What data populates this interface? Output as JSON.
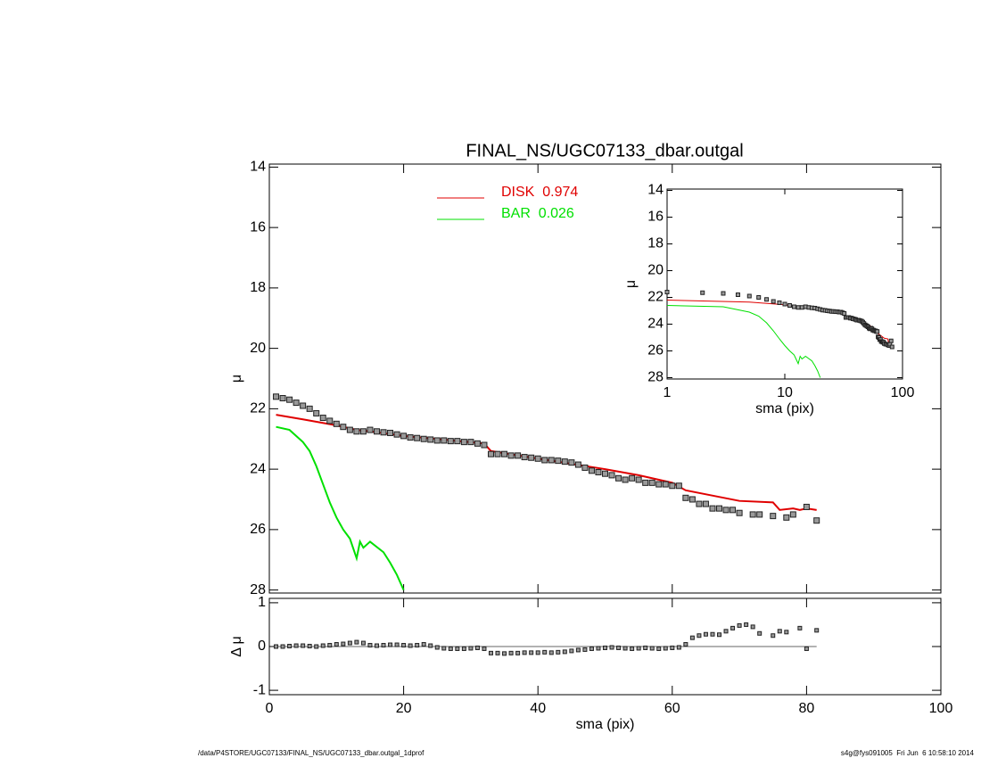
{
  "chart_data": [
    {
      "type": "line",
      "title": "FINAL_NS/UGC07133_dbar.outgal",
      "ylabel": "μ",
      "x": [
        1,
        2,
        3,
        4,
        5,
        6,
        7,
        8,
        9,
        10,
        11,
        12,
        13,
        14,
        15,
        16,
        17,
        18,
        19,
        20,
        21,
        22,
        23,
        24,
        25,
        26,
        27,
        28,
        29,
        30,
        31,
        32,
        33,
        34,
        35,
        36,
        37,
        38,
        39,
        40,
        41,
        42,
        43,
        44,
        45,
        46,
        47,
        48,
        49,
        50,
        51,
        52,
        53,
        54,
        55,
        56,
        57,
        58,
        59,
        60,
        61,
        62,
        63,
        64,
        65,
        66,
        67,
        68,
        69,
        70,
        72,
        73,
        75,
        77,
        78,
        80,
        81.5
      ],
      "values": [
        21.6,
        21.65,
        21.7,
        21.8,
        21.9,
        22.0,
        22.15,
        22.3,
        22.4,
        22.5,
        22.6,
        22.7,
        22.75,
        22.75,
        22.7,
        22.75,
        22.78,
        22.8,
        22.85,
        22.9,
        22.95,
        22.97,
        23.0,
        23.02,
        23.05,
        23.05,
        23.07,
        23.07,
        23.1,
        23.1,
        23.15,
        23.2,
        23.5,
        23.5,
        23.5,
        23.55,
        23.55,
        23.6,
        23.62,
        23.65,
        23.7,
        23.7,
        23.72,
        23.75,
        23.78,
        23.85,
        23.95,
        24.05,
        24.1,
        24.15,
        24.2,
        24.3,
        24.35,
        24.3,
        24.35,
        24.45,
        24.45,
        24.5,
        24.5,
        24.55,
        24.55,
        24.95,
        25.0,
        25.15,
        25.15,
        25.3,
        25.3,
        25.35,
        25.35,
        25.45,
        25.5,
        25.5,
        25.55,
        25.6,
        25.5,
        25.25,
        25.7
      ],
      "marker_color": "#9a9a9a",
      "series": [
        {
          "name": "DISK  0.974",
          "color": "#e00000",
          "x": [
            1,
            5,
            10,
            13,
            15,
            20,
            25,
            32,
            33,
            40,
            50,
            55,
            60,
            62,
            70,
            75,
            76,
            78,
            79,
            80,
            81.5
          ],
          "values": [
            22.2,
            22.35,
            22.55,
            22.7,
            22.75,
            22.9,
            23.0,
            23.15,
            23.4,
            23.65,
            24.0,
            24.2,
            24.45,
            24.7,
            25.05,
            25.1,
            25.35,
            25.3,
            25.35,
            25.3,
            25.35
          ]
        },
        {
          "name": "BAR  0.026",
          "color": "#00e000",
          "x": [
            1,
            3,
            5,
            6,
            7,
            8,
            9,
            10,
            11,
            12,
            13,
            13.5,
            14,
            15,
            17,
            18,
            19,
            20
          ],
          "values": [
            22.6,
            22.7,
            23.1,
            23.4,
            23.9,
            24.5,
            25.1,
            25.6,
            26.0,
            26.3,
            26.95,
            26.4,
            26.6,
            26.4,
            26.75,
            27.1,
            27.5,
            28.0
          ]
        }
      ],
      "xlim": [
        0,
        100
      ],
      "ylim": [
        13.9,
        28.1
      ],
      "y_inverted": true,
      "xticks": [
        0,
        20,
        40,
        60,
        80,
        100
      ],
      "yticks": [
        14,
        16,
        18,
        20,
        22,
        24,
        26,
        28
      ]
    },
    {
      "type": "inset",
      "xlabel": "sma (pix)",
      "ylabel": "μ",
      "xscale": "log",
      "xlim": [
        1,
        100
      ],
      "ylim": [
        13.9,
        28.1
      ],
      "y_inverted": true,
      "xticks": [
        1,
        10,
        100
      ],
      "yticks": [
        14,
        16,
        18,
        20,
        22,
        24,
        26,
        28
      ]
    },
    {
      "type": "scatter",
      "xlabel": "sma (pix)",
      "ylabel": "Δ μ",
      "x": [
        1,
        2,
        3,
        4,
        5,
        6,
        7,
        8,
        9,
        10,
        11,
        12,
        13,
        14,
        15,
        16,
        17,
        18,
        19,
        20,
        21,
        22,
        23,
        24,
        25,
        26,
        27,
        28,
        29,
        30,
        31,
        32,
        33,
        34,
        35,
        36,
        37,
        38,
        39,
        40,
        41,
        42,
        43,
        44,
        45,
        46,
        47,
        48,
        49,
        50,
        51,
        52,
        53,
        54,
        55,
        56,
        57,
        58,
        59,
        60,
        61,
        62,
        63,
        64,
        65,
        66,
        67,
        68,
        69,
        70,
        71,
        72,
        73,
        75,
        76,
        77,
        79,
        80,
        81.5
      ],
      "values": [
        0,
        0,
        0.01,
        0.02,
        0.02,
        0.01,
        0,
        0.02,
        0.03,
        0.05,
        0.06,
        0.08,
        0.1,
        0.08,
        0.03,
        0.02,
        0.03,
        0.04,
        0.04,
        0.03,
        0.02,
        0.03,
        0.05,
        0.02,
        -0.02,
        -0.04,
        -0.05,
        -0.05,
        -0.05,
        -0.04,
        -0.03,
        -0.05,
        -0.15,
        -0.15,
        -0.16,
        -0.15,
        -0.15,
        -0.14,
        -0.14,
        -0.14,
        -0.13,
        -0.14,
        -0.13,
        -0.12,
        -0.1,
        -0.08,
        -0.07,
        -0.05,
        -0.04,
        -0.03,
        -0.02,
        -0.03,
        -0.04,
        -0.05,
        -0.04,
        -0.03,
        -0.04,
        -0.05,
        -0.04,
        -0.03,
        -0.02,
        0.05,
        0.2,
        0.25,
        0.28,
        0.28,
        0.27,
        0.35,
        0.42,
        0.48,
        0.5,
        0.45,
        0.3,
        0.25,
        0.35,
        0.33,
        0.42,
        -0.05,
        0.37
      ],
      "marker_color": "#9a9a9a",
      "xlim": [
        0,
        100
      ],
      "ylim": [
        -1.1,
        1.1
      ],
      "xticks": [
        0,
        20,
        40,
        60,
        80,
        100
      ],
      "yticks": [
        -1,
        0,
        1
      ],
      "hline": 0
    }
  ],
  "footer_left": "/data/P4STORE/UGC07133/FINAL_NS/UGC07133_dbar.outgal_1dprof",
  "footer_right": "s4g@fys091005  Fri Jun  6 10:58:10 2014"
}
